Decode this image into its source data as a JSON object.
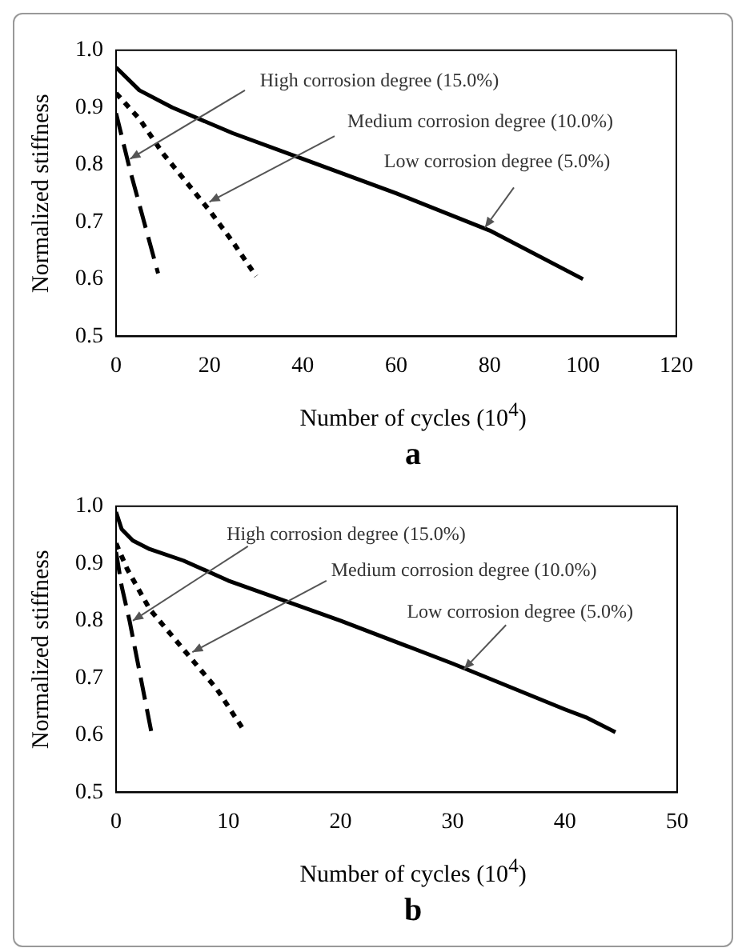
{
  "chart_data": [
    {
      "type": "line",
      "title": "a",
      "xlabel": "Number of cycles (10$^{4}$)",
      "ylabel": "Normalized stiffness",
      "xlim": [
        0,
        120
      ],
      "xticks": [
        0,
        20,
        40,
        60,
        80,
        100,
        120
      ],
      "ylim": [
        0.5,
        1.0
      ],
      "yticks": [
        {
          "value": 0.5,
          "label": "0.5"
        },
        {
          "value": 0.6,
          "label": "0.6"
        },
        {
          "value": 0.7,
          "label": "0.7"
        },
        {
          "value": 0.8,
          "label": "0.8"
        },
        {
          "value": 0.9,
          "label": "0.9"
        },
        {
          "value": 1.0,
          "label": "1.0"
        }
      ],
      "grid": false,
      "legend": false,
      "marker": "none",
      "series": [
        {
          "color": "#000000",
          "line_style": "solid",
          "x": [
            0,
            5,
            12,
            25,
            40,
            60,
            80,
            100
          ],
          "values": [
            0.97,
            0.93,
            0.9,
            0.855,
            0.81,
            0.75,
            0.685,
            0.6
          ]
        },
        {
          "color": "#000000",
          "line_style": "dotted",
          "x": [
            0,
            5,
            10,
            20,
            25,
            30
          ],
          "values": [
            0.925,
            0.88,
            0.82,
            0.72,
            0.665,
            0.605
          ]
        },
        {
          "color": "#000000",
          "line_style": "dashed",
          "x": [
            0,
            3,
            6,
            9
          ],
          "values": [
            0.89,
            0.79,
            0.7,
            0.61
          ]
        }
      ],
      "annotations": [
        {
          "text": "High corrosion degree (15.0%)",
          "x": 3,
          "y": 0.81
        },
        {
          "text": "Medium corrosion degree (10.0%)",
          "x": 20,
          "y": 0.735
        },
        {
          "text": "Low corrosion degree (5.0%)",
          "x": 79,
          "y": 0.69
        }
      ]
    },
    {
      "type": "line",
      "title": "b",
      "xlabel": "Number of cycles (10$^{4}$)",
      "ylabel": "Normalized stiffness",
      "xlim": [
        0,
        50
      ],
      "xticks": [
        0,
        10,
        20,
        30,
        40,
        50
      ],
      "ylim": [
        0.5,
        1.0
      ],
      "yticks": [
        {
          "value": 0.5,
          "label": "0.5"
        },
        {
          "value": 0.6,
          "label": "0.6"
        },
        {
          "value": 0.7,
          "label": "0.7"
        },
        {
          "value": 0.8,
          "label": "0.8"
        },
        {
          "value": 0.9,
          "label": "0.9"
        },
        {
          "value": 1.0,
          "label": "1.0"
        }
      ],
      "grid": false,
      "legend": false,
      "marker": "none",
      "series": [
        {
          "color": "#000000",
          "line_style": "solid",
          "x": [
            0,
            0.5,
            1.5,
            3,
            6,
            10,
            20,
            30,
            40,
            42,
            44.5
          ],
          "values": [
            0.99,
            0.96,
            0.94,
            0.925,
            0.905,
            0.87,
            0.8,
            0.725,
            0.645,
            0.63,
            0.605
          ]
        },
        {
          "color": "#000000",
          "line_style": "dotted",
          "x": [
            0,
            1,
            3,
            6,
            9,
            11.5
          ],
          "values": [
            0.935,
            0.89,
            0.82,
            0.75,
            0.68,
            0.605
          ]
        },
        {
          "color": "#000000",
          "line_style": "dashed",
          "x": [
            0,
            0.5,
            1.2,
            2,
            3.2
          ],
          "values": [
            0.92,
            0.86,
            0.8,
            0.72,
            0.6
          ]
        }
      ],
      "annotations": [
        {
          "text": "High corrosion degree (15.0%)",
          "x": 1.5,
          "y": 0.8
        },
        {
          "text": "Medium corrosion degree (10.0%)",
          "x": 6.8,
          "y": 0.745
        },
        {
          "text": "Low corrosion degree (5.0%)",
          "x": 31,
          "y": 0.715
        }
      ]
    }
  ]
}
